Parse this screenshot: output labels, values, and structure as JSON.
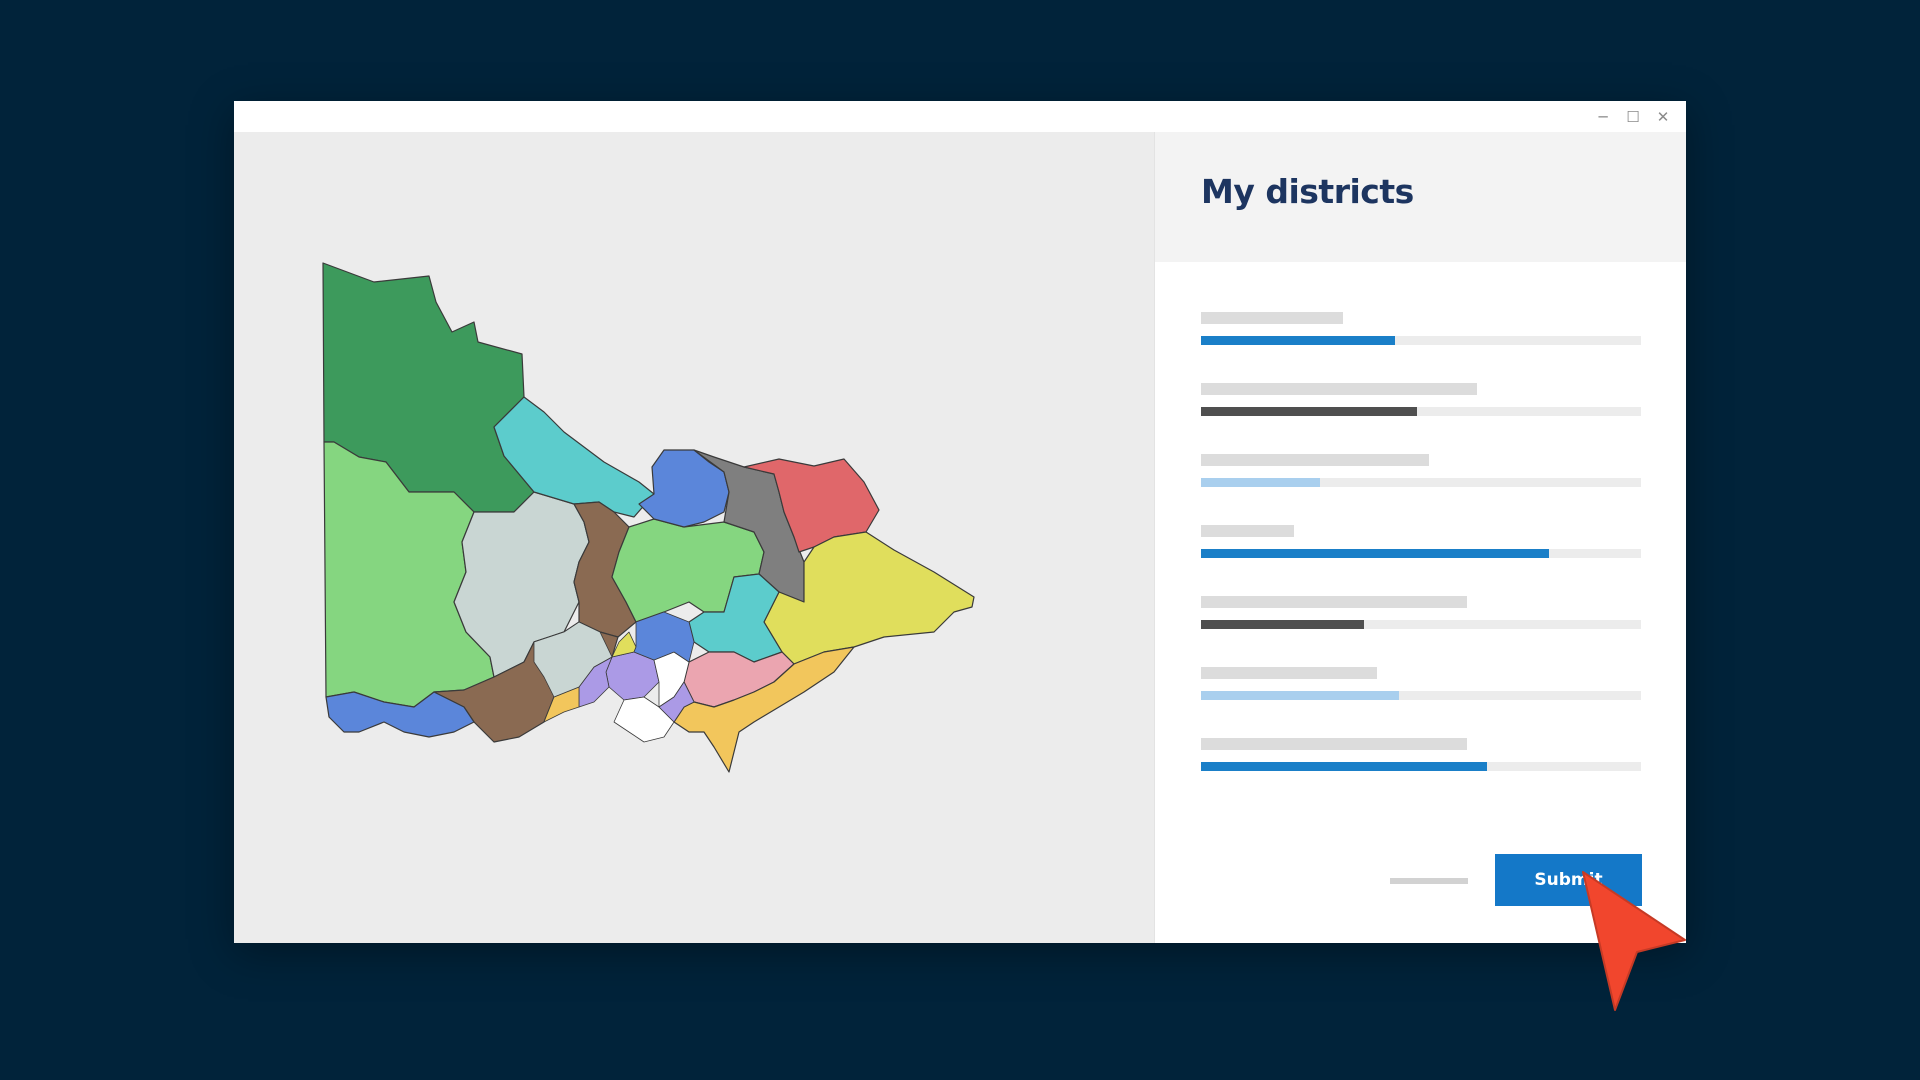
{
  "window": {
    "controls": {
      "minimize": "─",
      "maximize": "☐",
      "close": "✕"
    }
  },
  "map": {
    "districts": [
      {
        "name": "district-northwest-1",
        "color": "#3d9a5c"
      },
      {
        "name": "district-west",
        "color": "#85d680"
      },
      {
        "name": "district-grey-central",
        "color": "#c9d6d3"
      },
      {
        "name": "district-teal-north",
        "color": "#5ccccc"
      },
      {
        "name": "district-brown-north",
        "color": "#8a6a52"
      },
      {
        "name": "district-green-central",
        "color": "#85d680"
      },
      {
        "name": "district-blue-north",
        "color": "#5b86da"
      },
      {
        "name": "district-grey-northeast",
        "color": "#7f7f7f"
      },
      {
        "name": "district-red-northeast",
        "color": "#e0676a"
      },
      {
        "name": "district-yellow-east",
        "color": "#e0de5c"
      },
      {
        "name": "district-teal-central",
        "color": "#5ccccc"
      },
      {
        "name": "district-brown-southwest",
        "color": "#8a6a52"
      },
      {
        "name": "district-blue-southwest",
        "color": "#5b86da"
      },
      {
        "name": "district-pink-southeast",
        "color": "#eba5b0"
      },
      {
        "name": "district-orange-southeast",
        "color": "#f2c65c"
      }
    ]
  },
  "panel": {
    "title": "My districts",
    "rows": [
      {
        "label_width": 142,
        "fill": 0.44,
        "color": "#1a7fc8"
      },
      {
        "label_width": 276,
        "fill": 0.49,
        "color": "#4f4f4f"
      },
      {
        "label_width": 228,
        "fill": 0.27,
        "color": "#a9cfee"
      },
      {
        "label_width": 93,
        "fill": 0.79,
        "color": "#1a7fc8"
      },
      {
        "label_width": 266,
        "fill": 0.37,
        "color": "#4f4f4f"
      },
      {
        "label_width": 176,
        "fill": 0.45,
        "color": "#a9cfee"
      },
      {
        "label_width": 266,
        "fill": 0.65,
        "color": "#1a7fc8"
      }
    ],
    "submit_label": "Submit"
  }
}
